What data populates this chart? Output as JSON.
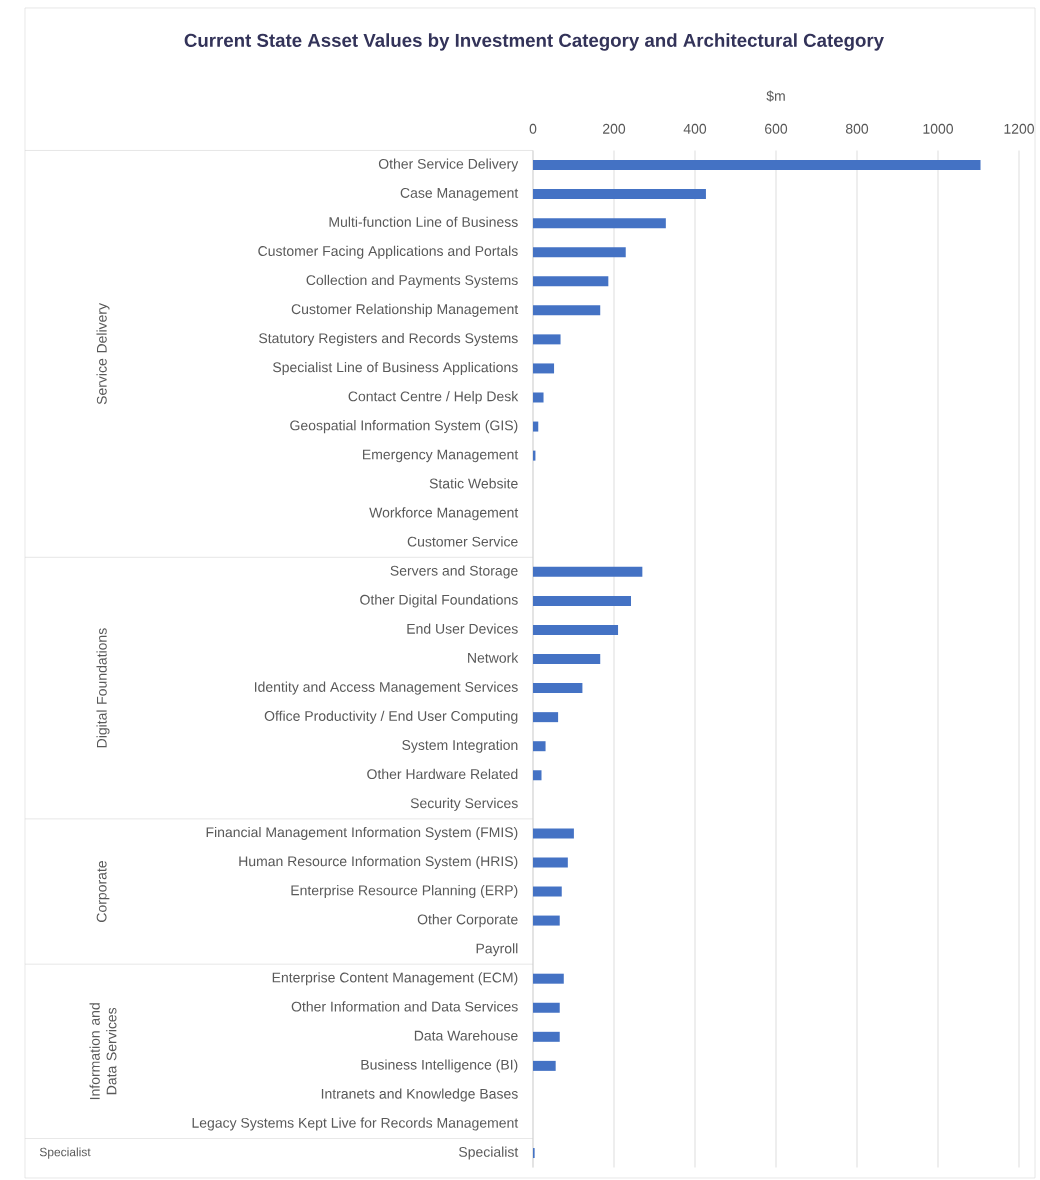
{
  "chart_data": {
    "type": "bar",
    "orientation": "horizontal",
    "title": "Current State Asset Values by Investment Category and Architectural Category",
    "xlabel": "$m",
    "categories": [
      "Other Service Delivery",
      "Case Management",
      "Multi-function Line of Business",
      "Customer Facing Applications and Portals",
      "Collection and Payments Systems",
      "Customer Relationship Management",
      "Statutory Registers and Records Systems",
      "Specialist Line of Business Applications",
      "Contact Centre / Help Desk",
      "Geospatial Information System (GIS)",
      "Emergency Management",
      "Static Website",
      "Workforce Management",
      "Customer Service",
      "Servers and Storage",
      "Other Digital Foundations",
      "End User Devices",
      "Network",
      "Identity and Access Management Services",
      "Office Productivity / End User Computing",
      "System Integration",
      "Other Hardware Related",
      "Security Services",
      "Financial Management Information System (FMIS)",
      "Human Resource Information System (HRIS)",
      "Enterprise Resource Planning (ERP)",
      "Other Corporate",
      "Payroll",
      "Enterprise Content Management (ECM)",
      "Other Information and Data Services",
      "Data Warehouse",
      "Business Intelligence (BI)",
      "Intranets and Knowledge Bases",
      "Legacy Systems Kept Live for Records Management",
      "Specialist"
    ],
    "values": [
      1105,
      427,
      328,
      229,
      186,
      166,
      68,
      52,
      26,
      13,
      6,
      0,
      0,
      0,
      270,
      242,
      210,
      166,
      122,
      62,
      31,
      21,
      0,
      101,
      86,
      71,
      66,
      0,
      76,
      66,
      66,
      56,
      0,
      0,
      4
    ],
    "color": "#4472c4",
    "xlim": [
      0,
      1200
    ],
    "xticks": [
      0,
      200,
      400,
      600,
      800,
      1000,
      1200
    ],
    "grid": "x",
    "annotations": [
      "Service Delivery",
      "Digital Foundations",
      "Corporate",
      "Information and Data Services",
      "Specialist"
    ]
  }
}
